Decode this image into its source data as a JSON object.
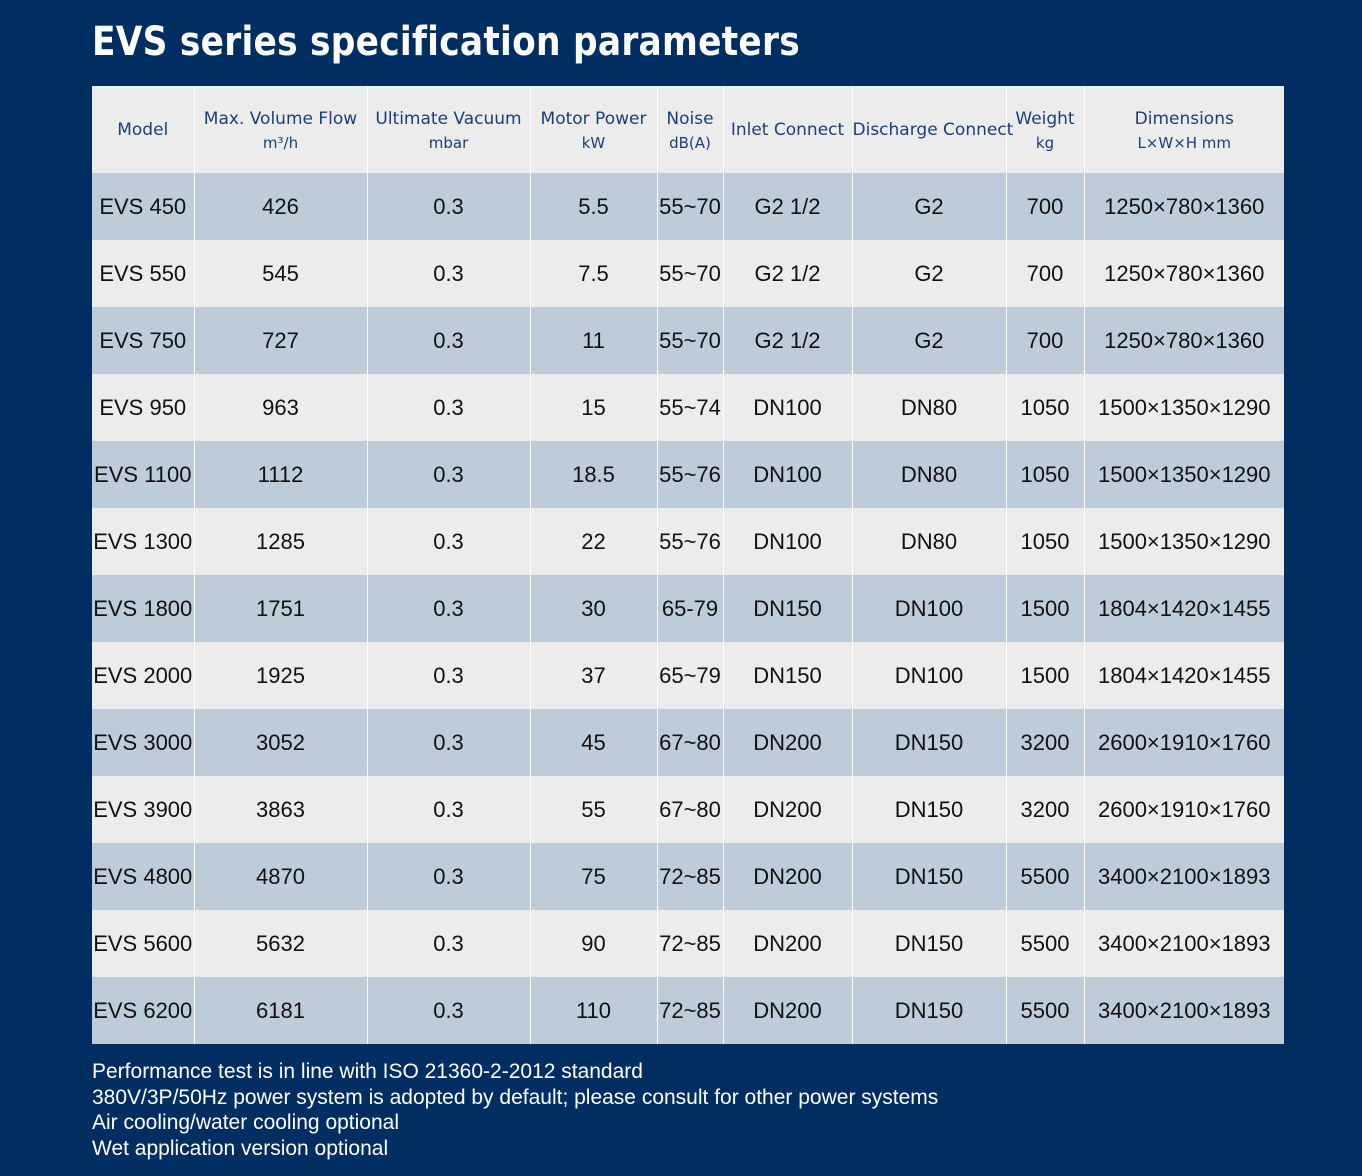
{
  "title": "EVS series specification parameters",
  "table": {
    "columns": [
      {
        "label": "Model",
        "unit": ""
      },
      {
        "label": "Max. Volume Flow",
        "unit": "m³/h"
      },
      {
        "label": "Ultimate Vacuum",
        "unit": "mbar"
      },
      {
        "label": "Motor Power",
        "unit": "kW"
      },
      {
        "label": "Noise",
        "unit": "dB(A)"
      },
      {
        "label": "Inlet Connect",
        "unit": ""
      },
      {
        "label": "Discharge Connect",
        "unit": ""
      },
      {
        "label": "Weight",
        "unit": "kg"
      },
      {
        "label": "Dimensions",
        "unit": "L×W×H mm"
      }
    ],
    "rows": [
      [
        "EVS 450",
        "426",
        "0.3",
        "5.5",
        "55~70",
        "G2 1/2",
        "G2",
        "700",
        "1250×780×1360"
      ],
      [
        "EVS 550",
        "545",
        "0.3",
        "7.5",
        "55~70",
        "G2 1/2",
        "G2",
        "700",
        "1250×780×1360"
      ],
      [
        "EVS 750",
        "727",
        "0.3",
        "11",
        "55~70",
        "G2 1/2",
        "G2",
        "700",
        "1250×780×1360"
      ],
      [
        "EVS 950",
        "963",
        "0.3",
        "15",
        "55~74",
        "DN100",
        "DN80",
        "1050",
        "1500×1350×1290"
      ],
      [
        "EVS 1100",
        "1112",
        "0.3",
        "18.5",
        "55~76",
        "DN100",
        "DN80",
        "1050",
        "1500×1350×1290"
      ],
      [
        "EVS 1300",
        "1285",
        "0.3",
        "22",
        "55~76",
        "DN100",
        "DN80",
        "1050",
        "1500×1350×1290"
      ],
      [
        "EVS 1800",
        "1751",
        "0.3",
        "30",
        "65-79",
        "DN150",
        "DN100",
        "1500",
        "1804×1420×1455"
      ],
      [
        "EVS 2000",
        "1925",
        "0.3",
        "37",
        "65~79",
        "DN150",
        "DN100",
        "1500",
        "1804×1420×1455"
      ],
      [
        "EVS 3000",
        "3052",
        "0.3",
        "45",
        "67~80",
        "DN200",
        "DN150",
        "3200",
        "2600×1910×1760"
      ],
      [
        "EVS 3900",
        "3863",
        "0.3",
        "55",
        "67~80",
        "DN200",
        "DN150",
        "3200",
        "2600×1910×1760"
      ],
      [
        "EVS 4800",
        "4870",
        "0.3",
        "75",
        "72~85",
        "DN200",
        "DN150",
        "5500",
        "3400×2100×1893"
      ],
      [
        "EVS 5600",
        "5632",
        "0.3",
        "90",
        "72~85",
        "DN200",
        "DN150",
        "5500",
        "3400×2100×1893"
      ],
      [
        "EVS 6200",
        "6181",
        "0.3",
        "110",
        "72~85",
        "DN200",
        "DN150",
        "5500",
        "3400×2100×1893"
      ]
    ]
  },
  "notes": [
    "Performance test is in line with ISO 21360-2-2012 standard",
    "380V/3P/50Hz power system is adopted by default; please consult for other power systems",
    "Air cooling/water cooling optional",
    "Wet application version optional"
  ]
}
